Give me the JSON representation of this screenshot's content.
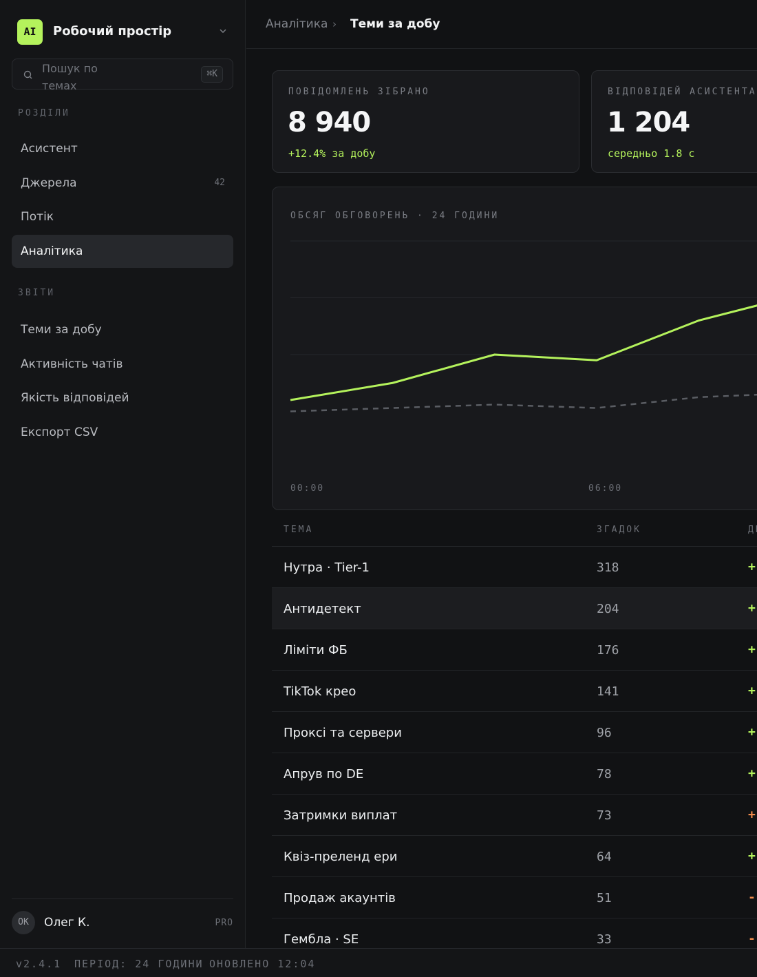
{
  "workspace": {
    "logo": "AI",
    "name": "Робочий простір",
    "chevron_icon": "chevron-down-icon"
  },
  "search": {
    "placeholder": "Пошук по темах",
    "shortcut": "⌘K",
    "icon": "search-icon"
  },
  "sidebar": {
    "section1_label": "РОЗДІЛИ",
    "section1_items": [
      {
        "label": "Асистент",
        "count": ""
      },
      {
        "label": "Джерела",
        "count": "42"
      },
      {
        "label": "Потік",
        "count": ""
      },
      {
        "label": "Аналітика",
        "count": "",
        "active": true
      }
    ],
    "section2_label": "ЗВІТИ",
    "section2_items": [
      {
        "label": "Теми за добу"
      },
      {
        "label": "Активність чатів"
      },
      {
        "label": "Якість відповідей"
      },
      {
        "label": "Експорт CSV"
      }
    ]
  },
  "user": {
    "initials": "ОК",
    "name": "Олег К.",
    "plan": "PRO"
  },
  "breadcrumb": {
    "parent": "Аналітика",
    "separator": "›",
    "current": "Теми за добу"
  },
  "kpis": [
    {
      "label": "ПОВІДОМЛЕНЬ ЗІБРАНО",
      "value": "8 940",
      "sub": "+12.4% за добу"
    },
    {
      "label": "ВІДПОВІДЕЙ АСИСТЕНТА",
      "value": "1 204",
      "sub": "середньо 1.8 с"
    }
  ],
  "chart_data": {
    "type": "line",
    "title": "ОБСЯГ ОБГОВОРЕНЬ · 24 ГОДИНИ",
    "x_tick_labels": [
      "00:00",
      "06:00"
    ],
    "x_hours": [
      0,
      2,
      4,
      6,
      8
    ],
    "series": [
      {
        "values": [
          620,
          650,
          700,
          690,
          760,
          790
        ],
        "x_hours": [
          0,
          2,
          4,
          6,
          8,
          9.3
        ],
        "color": "#b4f25c",
        "style": "solid"
      },
      {
        "values": [
          600,
          606,
          612,
          606,
          625,
          630
        ],
        "x_hours": [
          0,
          2,
          4,
          6,
          8,
          9.3
        ],
        "color": "#5a5d63",
        "style": "dashed"
      }
    ],
    "grid": true,
    "ylim": [
      500,
      900
    ]
  },
  "table": {
    "headers": {
      "topic": "ТЕМА",
      "mentions": "ЗГАДОК",
      "delta": "ДИ"
    },
    "rows": [
      {
        "topic": "Нутра · Tier-1",
        "count": "318",
        "delta": "+",
        "trend": "up"
      },
      {
        "topic": "Антидетект",
        "count": "204",
        "delta": "+",
        "trend": "up",
        "highlight": true
      },
      {
        "topic": "Ліміти ФБ",
        "count": "176",
        "delta": "+",
        "trend": "up"
      },
      {
        "topic": "TikTok крео",
        "count": "141",
        "delta": "+",
        "trend": "up"
      },
      {
        "topic": "Проксі та сервери",
        "count": "96",
        "delta": "+",
        "trend": "up"
      },
      {
        "topic": "Апрув по DE",
        "count": "78",
        "delta": "+",
        "trend": "up"
      },
      {
        "topic": "Затримки виплат",
        "count": "73",
        "delta": "+",
        "trend": "warn"
      },
      {
        "topic": "Квіз-преленд ери",
        "count": "64",
        "delta": "+",
        "trend": "up"
      },
      {
        "topic": "Продаж акаунтів",
        "count": "51",
        "delta": "-",
        "trend": "down"
      },
      {
        "topic": "Гембла · SE",
        "count": "33",
        "delta": "-",
        "trend": "down"
      }
    ]
  },
  "colors": {
    "accent": "#b4f25c",
    "warn": "#f08a4b",
    "down": "#f08a4b"
  },
  "statusbar": {
    "version": "v2.4.1",
    "period": "ПЕРІОД: 24 ГОДИНИ",
    "updated": "ОНОВЛЕНО 12:04"
  }
}
